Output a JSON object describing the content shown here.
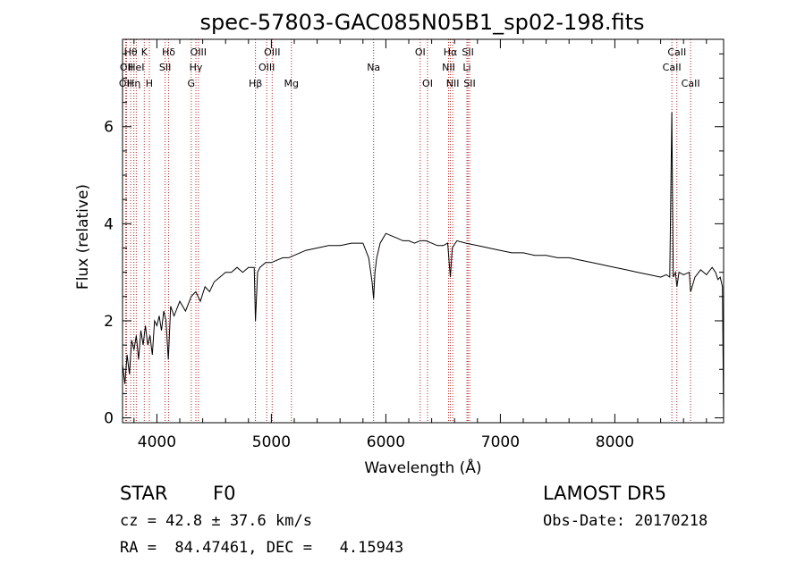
{
  "chart_data": {
    "type": "line",
    "title": "spec-57803-GAC085N05B1_sp02-198.fits",
    "xlabel": "Wavelength (Å)",
    "ylabel": "Flux (relative)",
    "xlim": [
      3700,
      8950
    ],
    "ylim": [
      -0.1,
      7.8
    ],
    "xticks": [
      4000,
      5000,
      6000,
      7000,
      8000
    ],
    "yticks": [
      0,
      2,
      4,
      6
    ],
    "grid": false,
    "series": [
      {
        "color": "#000000",
        "x": [
          3700,
          3720,
          3740,
          3760,
          3780,
          3800,
          3820,
          3840,
          3860,
          3880,
          3900,
          3920,
          3940,
          3960,
          3980,
          4000,
          4020,
          4040,
          4060,
          4080,
          4100,
          4120,
          4150,
          4200,
          4250,
          4300,
          4340,
          4380,
          4420,
          4460,
          4500,
          4550,
          4600,
          4650,
          4700,
          4750,
          4800,
          4850,
          4861,
          4880,
          4900,
          4950,
          5000,
          5050,
          5100,
          5150,
          5200,
          5250,
          5300,
          5400,
          5500,
          5600,
          5700,
          5800,
          5850,
          5880,
          5893,
          5905,
          5920,
          5950,
          6000,
          6050,
          6100,
          6150,
          6200,
          6250,
          6300,
          6350,
          6400,
          6450,
          6500,
          6540,
          6563,
          6580,
          6620,
          6700,
          6800,
          6900,
          7000,
          7100,
          7200,
          7300,
          7400,
          7500,
          7600,
          7700,
          7800,
          7900,
          8000,
          8100,
          8200,
          8300,
          8400,
          8450,
          8480,
          8498,
          8510,
          8530,
          8542,
          8560,
          8600,
          8650,
          8662,
          8700,
          8750,
          8800,
          8850,
          8880,
          8900,
          8920,
          8940,
          8950
        ],
        "y": [
          1.1,
          0.7,
          1.3,
          0.9,
          1.6,
          1.4,
          1.7,
          1.2,
          1.8,
          1.5,
          1.9,
          1.5,
          1.7,
          1.3,
          2.0,
          1.9,
          2.1,
          1.8,
          2.2,
          2.0,
          1.2,
          2.3,
          2.1,
          2.4,
          2.2,
          2.5,
          2.6,
          2.4,
          2.7,
          2.6,
          2.8,
          2.9,
          3.0,
          3.0,
          3.1,
          3.0,
          3.1,
          3.1,
          2.0,
          3.0,
          3.1,
          3.2,
          3.2,
          3.25,
          3.3,
          3.3,
          3.35,
          3.4,
          3.45,
          3.5,
          3.55,
          3.55,
          3.6,
          3.6,
          3.3,
          2.8,
          2.45,
          3.0,
          3.3,
          3.6,
          3.8,
          3.75,
          3.7,
          3.65,
          3.65,
          3.6,
          3.65,
          3.65,
          3.6,
          3.55,
          3.55,
          3.6,
          2.9,
          3.5,
          3.65,
          3.6,
          3.55,
          3.5,
          3.45,
          3.4,
          3.4,
          3.35,
          3.35,
          3.3,
          3.3,
          3.25,
          3.2,
          3.15,
          3.1,
          3.05,
          3.0,
          2.95,
          2.9,
          2.95,
          2.9,
          6.3,
          2.9,
          3.0,
          2.7,
          3.0,
          2.95,
          3.0,
          2.6,
          2.9,
          3.05,
          2.95,
          3.1,
          3.0,
          2.85,
          2.9,
          2.7,
          0.0
        ]
      }
    ],
    "lines": [
      {
        "wl": 3727,
        "row": 2,
        "label": "OII"
      },
      {
        "wl": 3735,
        "row": 1,
        "label": "OII"
      },
      {
        "wl": 3771,
        "row": 0,
        "label": "Hθ"
      },
      {
        "wl": 3799,
        "row": 2,
        "label": "Hη"
      },
      {
        "wl": 3820,
        "row": 1,
        "label": "HeI"
      },
      {
        "wl": 3890,
        "row": 0,
        "label": "K"
      },
      {
        "wl": 3934,
        "row": 2,
        "label": "H"
      },
      {
        "wl": 4072,
        "row": 1,
        "label": "SII"
      },
      {
        "wl": 4102,
        "row": 0,
        "label": "Hδ"
      },
      {
        "wl": 4300,
        "row": 2,
        "label": "G"
      },
      {
        "wl": 4341,
        "row": 1,
        "label": "Hγ"
      },
      {
        "wl": 4363,
        "row": 0,
        "label": "OIII"
      },
      {
        "wl": 4861,
        "row": 2,
        "label": "Hβ"
      },
      {
        "wl": 4959,
        "row": 1,
        "label": "OIII"
      },
      {
        "wl": 5007,
        "row": 0,
        "label": "OIII"
      },
      {
        "wl": 5175,
        "row": 2,
        "label": "Mg"
      },
      {
        "wl": 5893,
        "row": 1,
        "label": "Na"
      },
      {
        "wl": 6300,
        "row": 0,
        "label": "OI"
      },
      {
        "wl": 6364,
        "row": 2,
        "label": "OI"
      },
      {
        "wl": 6548,
        "row": 1,
        "label": "NII"
      },
      {
        "wl": 6563,
        "row": 0,
        "label": "Hα"
      },
      {
        "wl": 6584,
        "row": 2,
        "label": "NII"
      },
      {
        "wl": 6708,
        "row": 1,
        "label": "Li"
      },
      {
        "wl": 6717,
        "row": 0,
        "label": "SII"
      },
      {
        "wl": 6731,
        "row": 2,
        "label": "SII"
      },
      {
        "wl": 8498,
        "row": 1,
        "label": "CaII"
      },
      {
        "wl": 8542,
        "row": 0,
        "label": "CaII"
      },
      {
        "wl": 8662,
        "row": 2,
        "label": "CaII"
      }
    ]
  },
  "info": {
    "class": "STAR",
    "subclass": "F0",
    "survey": "LAMOST DR5",
    "cz": "cz = 42.8 ± 37.6 km/s",
    "obs_date": "Obs-Date: 20170218",
    "coords": "RA =  84.47461, DEC =   4.15943"
  },
  "colors": {
    "spectrum": "#000000",
    "line_marker": "#b22222",
    "axes": "#000000"
  }
}
